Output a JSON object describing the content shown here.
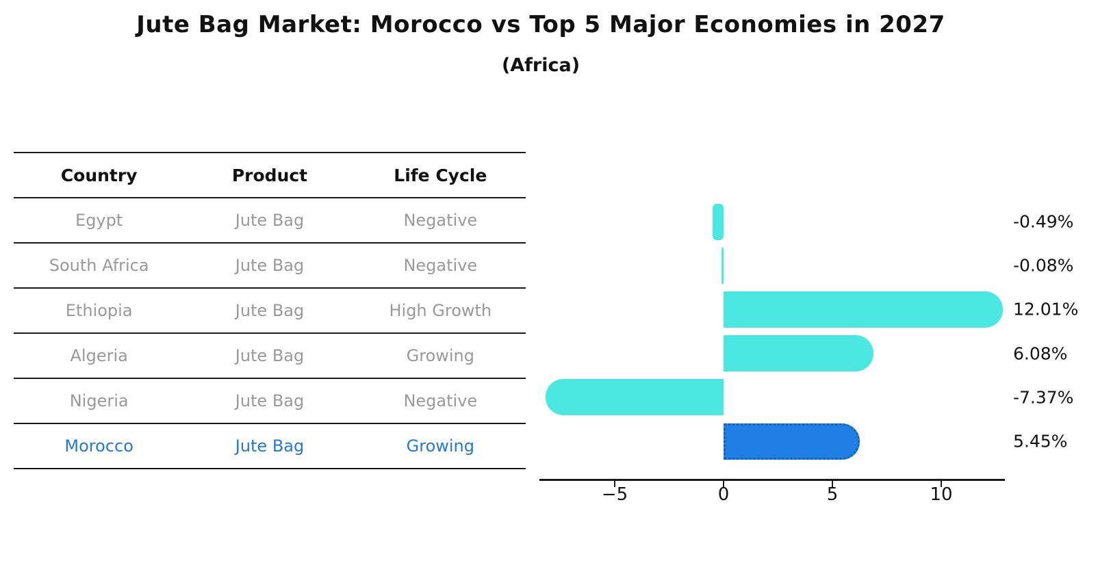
{
  "title": "Jute Bag Market: Morocco vs Top 5 Major Economies in 2027",
  "subtitle": "(Africa)",
  "table": {
    "headers": [
      "Country",
      "Product",
      "Life Cycle"
    ],
    "rows": [
      {
        "country": "Egypt",
        "product": "Jute Bag",
        "life_cycle": "Negative"
      },
      {
        "country": "South Africa",
        "product": "Jute Bag",
        "life_cycle": "Negative"
      },
      {
        "country": "Ethiopia",
        "product": "Jute Bag",
        "life_cycle": "High Growth"
      },
      {
        "country": "Algeria",
        "product": "Jute Bag",
        "life_cycle": "Growing"
      },
      {
        "country": "Nigeria",
        "product": "Jute Bag",
        "life_cycle": "Negative"
      },
      {
        "country": "Morocco",
        "product": "Jute Bag",
        "life_cycle": "Growing"
      }
    ],
    "highlighted_row": "Morocco"
  },
  "chart_data": {
    "type": "bar",
    "orientation": "horizontal",
    "title": "Jute Bag Market: Morocco vs Top 5 Major Economies in 2027",
    "subtitle": "(Africa)",
    "categories": [
      "Egypt",
      "South Africa",
      "Ethiopia",
      "Algeria",
      "Nigeria",
      "Morocco"
    ],
    "values": [
      -0.49,
      -0.08,
      12.01,
      6.08,
      -7.37,
      5.45
    ],
    "value_labels": [
      "-0.49%",
      "-0.08%",
      "12.01%",
      "6.08%",
      "-7.37%",
      "5.45%"
    ],
    "xlabel": "",
    "ylabel": "",
    "xticks": [
      -5,
      0,
      5,
      10
    ],
    "xtick_labels": [
      "−5",
      "0",
      "5",
      "10"
    ],
    "xlim": [
      -8.5,
      13
    ],
    "grid": false,
    "legend": false,
    "highlight_index": 5,
    "colors": {
      "bar": "#4BE8E1",
      "highlight_bar": "#207FE2",
      "highlight_border": "#1062C8",
      "highlight_text": "#2478D4",
      "row_text": "#999999",
      "text": "#111111"
    }
  }
}
